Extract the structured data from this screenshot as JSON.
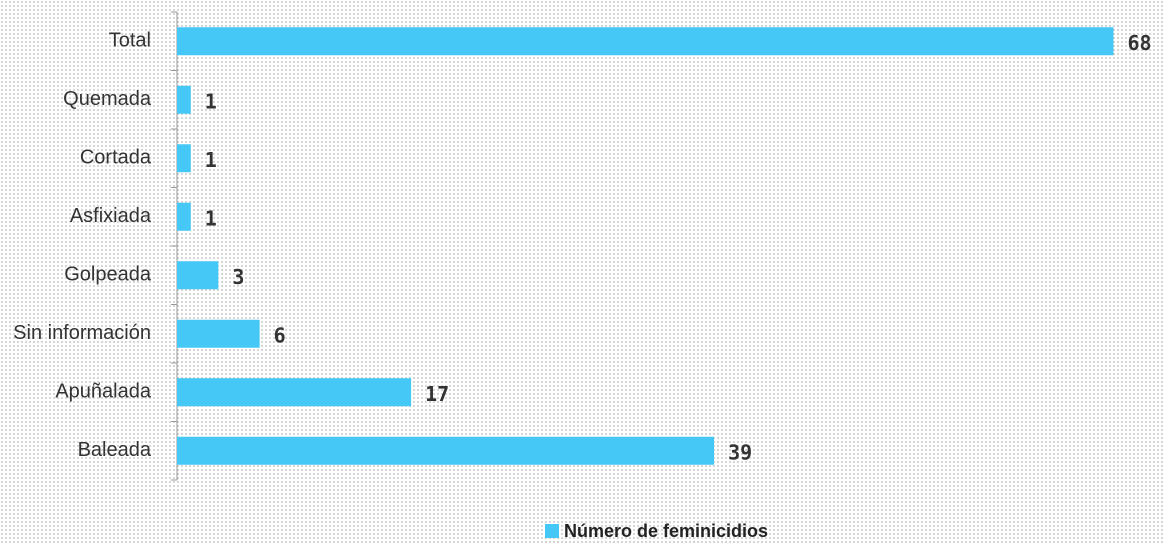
{
  "chart_data": {
    "type": "bar",
    "orientation": "horizontal",
    "categories": [
      "Total",
      "Quemada",
      "Cortada",
      "Asfixiada",
      "Golpeada",
      "Sin información",
      "Apuñalada",
      "Baleada"
    ],
    "series": [
      {
        "name": "Número de feminicidios",
        "color": "#45c8f5",
        "values": [
          68,
          1,
          1,
          1,
          3,
          6,
          17,
          39
        ]
      }
    ],
    "xlim": [
      0,
      70
    ],
    "legend": "bottom"
  }
}
